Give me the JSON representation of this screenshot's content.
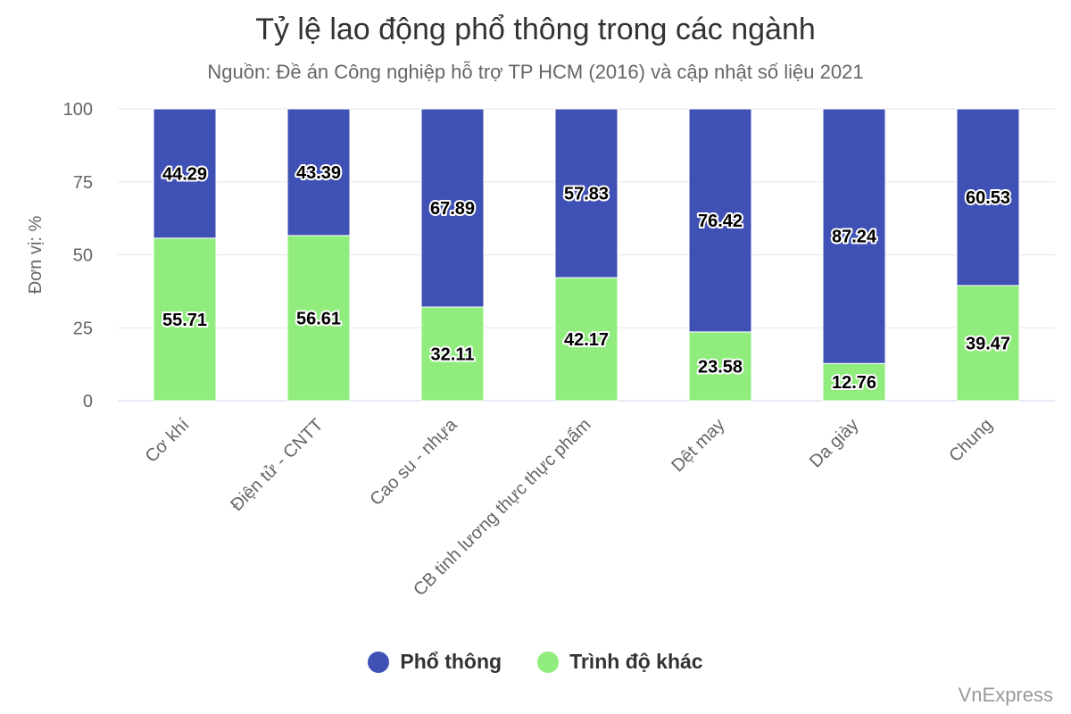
{
  "chart_data": {
    "type": "bar",
    "stacked": true,
    "title": "Tỷ lệ lao động phổ thông trong các ngành",
    "subtitle": "Nguồn: Đề án Công nghiệp hỗ trợ TP HCM (2016) và cập nhật số liệu 2021",
    "ylabel": "Đơn vị: %",
    "xlabel": "",
    "ylim": [
      0,
      100
    ],
    "yticks": [
      "0",
      "25",
      "50",
      "75",
      "100"
    ],
    "grid": true,
    "legend_position": "bottom",
    "categories": [
      "Cơ khí",
      "Điện tử - CNTT",
      "Cao su - nhựa",
      "CB tinh lương thực thực phẩm",
      "Dệt may",
      "Da giày",
      "Chung"
    ],
    "series": [
      {
        "name": "Trình độ khác",
        "color": "#90ed7d",
        "values": [
          55.71,
          56.61,
          32.11,
          42.17,
          23.58,
          12.76,
          39.47
        ]
      },
      {
        "name": "Phổ thông",
        "color": "#3f51b5",
        "values": [
          44.29,
          43.39,
          67.89,
          57.83,
          76.42,
          87.24,
          60.53
        ]
      }
    ]
  },
  "legend": {
    "items": [
      {
        "label": "Phổ thông",
        "color": "#3f51b5"
      },
      {
        "label": "Trình độ khác",
        "color": "#90ed7d"
      }
    ]
  },
  "credit": "VnExpress"
}
